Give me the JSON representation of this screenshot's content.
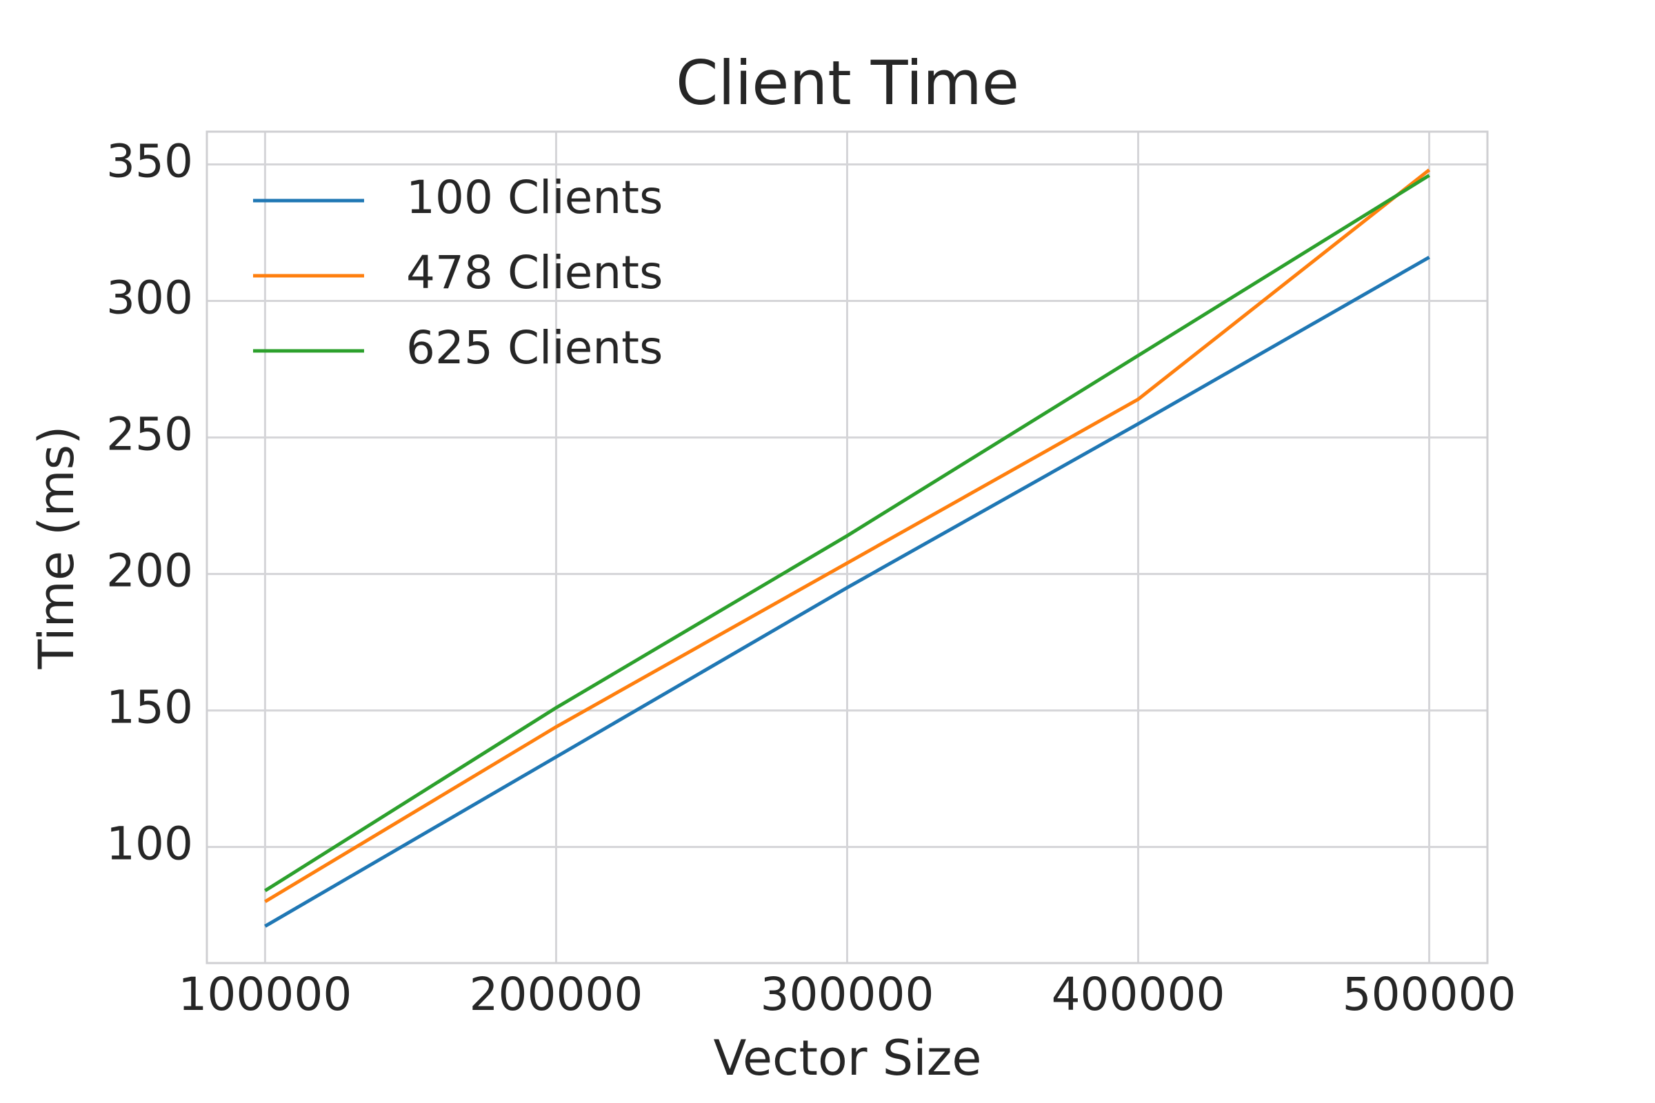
{
  "chart_data": {
    "type": "line",
    "title": "Client Time",
    "x_label": "Vector Size",
    "y_label": "Time (ms)",
    "x": [
      100000,
      200000,
      300000,
      400000,
      500000
    ],
    "series": [
      {
        "name": "100 Clients",
        "color": "#1f77b4",
        "values": [
          71,
          133,
          195,
          255,
          316
        ]
      },
      {
        "name": "478 Clients",
        "color": "#ff7f0e",
        "values": [
          80,
          144,
          204,
          264,
          348
        ]
      },
      {
        "name": "625 Clients",
        "color": "#2ca02c",
        "values": [
          84,
          151,
          214,
          280,
          346
        ]
      }
    ],
    "xlim": [
      80000,
      520000
    ],
    "xticks": [
      100000,
      200000,
      300000,
      400000,
      500000
    ],
    "ylim": [
      57.5,
      362
    ],
    "yticks": [
      100,
      150,
      200,
      250,
      300,
      350
    ],
    "grid": true,
    "legend": "upper left"
  }
}
